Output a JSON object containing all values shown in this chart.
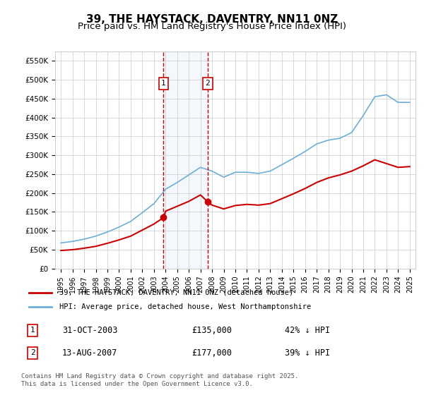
{
  "title": "39, THE HAYSTACK, DAVENTRY, NN11 0NZ",
  "subtitle": "Price paid vs. HM Land Registry's House Price Index (HPI)",
  "xlabel": "",
  "ylabel": "",
  "ylim": [
    0,
    575000
  ],
  "yticks": [
    0,
    50000,
    100000,
    150000,
    200000,
    250000,
    300000,
    350000,
    400000,
    450000,
    500000,
    550000
  ],
  "ytick_labels": [
    "£0",
    "£50K",
    "£100K",
    "£150K",
    "£200K",
    "£250K",
    "£300K",
    "£350K",
    "£400K",
    "£450K",
    "£500K",
    "£550K"
  ],
  "background_color": "#ffffff",
  "grid_color": "#cccccc",
  "line1_color": "#cc0000",
  "line2_color": "#6baed6",
  "marker1_year": 2003.83,
  "marker2_year": 2007.62,
  "marker1_price": 135000,
  "marker2_price": 177000,
  "marker1_label": "1",
  "marker2_label": "2",
  "marker1_date": "31-OCT-2003",
  "marker2_date": "13-AUG-2007",
  "marker1_hpi_pct": "42% ↓ HPI",
  "marker2_hpi_pct": "39% ↓ HPI",
  "legend_line1": "39, THE HAYSTACK, DAVENTRY, NN11 0NZ (detached house)",
  "legend_line2": "HPI: Average price, detached house, West Northamptonshire",
  "footnote": "Contains HM Land Registry data © Crown copyright and database right 2025.\nThis data is licensed under the Open Government Licence v3.0.",
  "title_fontsize": 11,
  "subtitle_fontsize": 9.5,
  "hpi_years": [
    1995,
    1996,
    1997,
    1998,
    1999,
    2000,
    2001,
    2002,
    2003,
    2004,
    2005,
    2006,
    2007,
    2008,
    2009,
    2010,
    2011,
    2012,
    2013,
    2014,
    2015,
    2016,
    2017,
    2018,
    2019,
    2020,
    2021,
    2022,
    2023,
    2024,
    2025
  ],
  "hpi_values": [
    68000,
    72000,
    78000,
    86000,
    97000,
    110000,
    125000,
    148000,
    172000,
    210000,
    228000,
    248000,
    268000,
    258000,
    242000,
    255000,
    255000,
    252000,
    258000,
    275000,
    292000,
    310000,
    330000,
    340000,
    345000,
    360000,
    405000,
    455000,
    460000,
    440000,
    440000
  ],
  "prop_years": [
    1995,
    1996,
    1997,
    1998,
    1999,
    2000,
    2001,
    2002,
    2003,
    2003.83,
    2004,
    2005,
    2006,
    2007,
    2007.62,
    2008,
    2009,
    2010,
    2011,
    2012,
    2013,
    2014,
    2015,
    2016,
    2017,
    2018,
    2019,
    2020,
    2021,
    2022,
    2023,
    2024,
    2025
  ],
  "prop_values": [
    48000,
    50000,
    54000,
    59000,
    67000,
    76000,
    86000,
    102000,
    118000,
    135000,
    152000,
    165000,
    178000,
    195000,
    177000,
    168000,
    158000,
    167000,
    170000,
    168000,
    172000,
    185000,
    198000,
    212000,
    228000,
    240000,
    248000,
    258000,
    272000,
    288000,
    278000,
    268000,
    270000
  ]
}
